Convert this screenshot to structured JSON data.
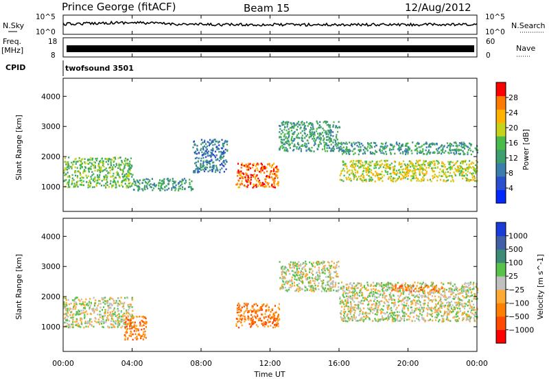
{
  "header": {
    "station": "Prince George (fitACF)",
    "beam": "Beam 15",
    "date": "12/Aug/2012"
  },
  "noise_panel": {
    "left_label": "N.Sky",
    "right_label": "N.Search",
    "left_ticks": [
      "10^5",
      "10^0"
    ],
    "right_ticks": [
      "10^5",
      "10^0"
    ]
  },
  "freq_panel": {
    "left_label_1": "Freq.",
    "left_label_2": "[MHz]",
    "right_label": "Nave",
    "left_ticks": [
      "18",
      "8"
    ],
    "right_ticks": [
      "60",
      "0"
    ]
  },
  "cpid_panel": {
    "label": "CPID",
    "program": "twofsound 3501"
  },
  "x_axis": {
    "label": "Time UT",
    "ticks": [
      "00:00",
      "04:00",
      "08:00",
      "12:00",
      "16:00",
      "20:00",
      "00:00"
    ],
    "range_hours": [
      0,
      24
    ]
  },
  "chart_data": [
    {
      "type": "heatmap",
      "quantity": "Power",
      "ylabel": "Slant Range [km]",
      "ylim": [
        180,
        4600
      ],
      "yticks": [
        "1000",
        "2000",
        "3000",
        "4000"
      ],
      "colorbar": {
        "label": "Power [dB]",
        "range": [
          0,
          32
        ],
        "ticks": [
          "4",
          "8",
          "12",
          "16",
          "20",
          "24",
          "28"
        ],
        "colors": [
          "#0028ff",
          "#2a4fcf",
          "#3b7dab",
          "#3f9e6e",
          "#48bb4a",
          "#c7d21d",
          "#ffb200",
          "#ff7a00",
          "#ff0000"
        ]
      },
      "echo_bands": [
        {
          "t": [
            0,
            4
          ],
          "range_km": [
            1000,
            2000
          ],
          "level": 16
        },
        {
          "t": [
            4,
            7.5
          ],
          "range_km": [
            900,
            1300
          ],
          "level": 14
        },
        {
          "t": [
            7.5,
            9.5
          ],
          "range_km": [
            1500,
            2600
          ],
          "level": 10
        },
        {
          "t": [
            10,
            12.5
          ],
          "range_km": [
            1000,
            1800
          ],
          "level": 26
        },
        {
          "t": [
            12.5,
            16
          ],
          "range_km": [
            2200,
            3200
          ],
          "level": 14
        },
        {
          "t": [
            16,
            24
          ],
          "range_km": [
            1200,
            1900
          ],
          "level": 18
        },
        {
          "t": [
            16,
            24
          ],
          "range_km": [
            2100,
            2500
          ],
          "level": 14
        }
      ]
    },
    {
      "type": "heatmap",
      "quantity": "Velocity",
      "ylabel": "Slant Range [km]",
      "ylim": [
        180,
        4600
      ],
      "yticks": [
        "1000",
        "2000",
        "3000",
        "4000"
      ],
      "colorbar": {
        "label": "Velocity [m s^-1]",
        "ticks": [
          "1000",
          "500",
          "100",
          "25",
          "−25",
          "−100",
          "−500",
          "−1000"
        ],
        "colors": [
          "#1a3cd8",
          "#3f5fa6",
          "#3d8a78",
          "#58c34a",
          "#c0c0c0",
          "#ffaa33",
          "#ff7f00",
          "#ff4a00",
          "#ff0000"
        ]
      },
      "echo_bands": [
        {
          "t": [
            0,
            4
          ],
          "range_km": [
            1000,
            2000
          ],
          "v": 0
        },
        {
          "t": [
            3.5,
            4.8
          ],
          "range_km": [
            600,
            1400
          ],
          "v": -200
        },
        {
          "t": [
            10,
            12.5
          ],
          "range_km": [
            1000,
            1800
          ],
          "v": -300
        },
        {
          "t": [
            12.5,
            16
          ],
          "range_km": [
            2200,
            3200
          ],
          "v": 0
        },
        {
          "t": [
            16,
            24
          ],
          "range_km": [
            1200,
            2500
          ],
          "v": 0
        },
        {
          "t": [
            19,
            22
          ],
          "range_km": [
            2200,
            2400
          ],
          "v": -250
        }
      ]
    }
  ]
}
